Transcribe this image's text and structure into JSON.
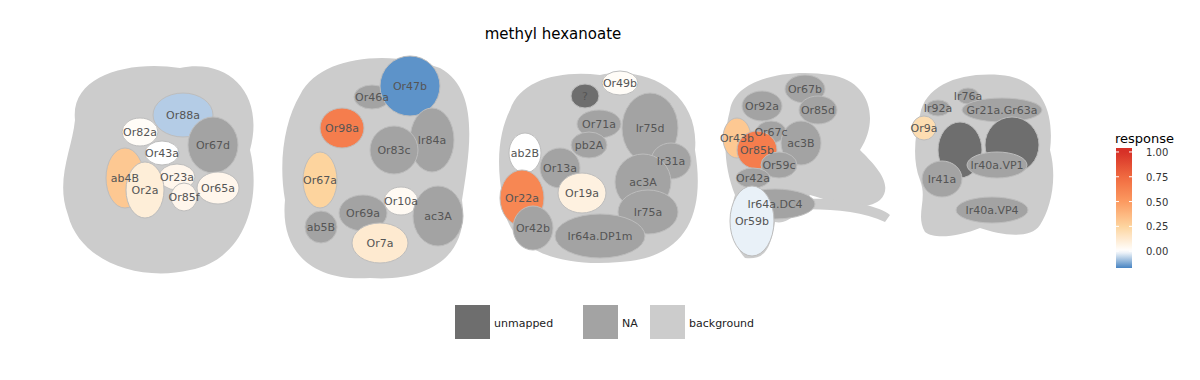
{
  "chart_data": {
    "type": "glomerulus_map",
    "title": "methyl hexanoate",
    "panels": [
      {
        "glomeruli": [
          {
            "label": "Or88a",
            "response": -0.07
          },
          {
            "label": "Or82a",
            "response": 0.02
          },
          {
            "label": "Or67d",
            "response": null,
            "status": "NA"
          },
          {
            "label": "Or43a",
            "response": 0.0
          },
          {
            "label": "ab4B",
            "response": 0.3
          },
          {
            "label": "Or23a",
            "response": 0.05
          },
          {
            "label": "Or2a",
            "response": 0.1
          },
          {
            "label": "Or85f",
            "response": 0.05
          },
          {
            "label": "Or65a",
            "response": 0.05
          }
        ]
      },
      {
        "glomeruli": [
          {
            "label": "Or46a",
            "response": null,
            "status": "NA"
          },
          {
            "label": "Or47b",
            "response": -0.15
          },
          {
            "label": "Or98a",
            "response": 0.65
          },
          {
            "label": "Ir84a",
            "response": null,
            "status": "NA"
          },
          {
            "label": "Or83c",
            "response": null,
            "status": "NA"
          },
          {
            "label": "Or67a",
            "response": 0.25
          },
          {
            "label": "Or10a",
            "response": 0.03
          },
          {
            "label": "Or69a",
            "response": null,
            "status": "NA"
          },
          {
            "label": "ac3A",
            "response": null,
            "status": "NA"
          },
          {
            "label": "ab5B",
            "response": null,
            "status": "NA"
          },
          {
            "label": "Or7a",
            "response": 0.12
          }
        ]
      },
      {
        "glomeruli": [
          {
            "label": "?",
            "response": null,
            "status": "unmapped"
          },
          {
            "label": "Or49b",
            "response": 0.02
          },
          {
            "label": "Or71a",
            "response": null,
            "status": "NA"
          },
          {
            "label": "Ir75d",
            "response": null,
            "status": "NA"
          },
          {
            "label": "ab2B",
            "response": 0.0
          },
          {
            "label": "pb2A",
            "response": null,
            "status": "NA"
          },
          {
            "label": "Or13a",
            "response": null,
            "status": "NA"
          },
          {
            "label": "Ir31a",
            "response": null,
            "status": "NA"
          },
          {
            "label": "ac3A",
            "response": null,
            "status": "NA"
          },
          {
            "label": "Or19a",
            "response": 0.08
          },
          {
            "label": "Or22a",
            "response": 0.6
          },
          {
            "label": "Or42b",
            "response": null,
            "status": "NA"
          },
          {
            "label": "Ir75a",
            "response": null,
            "status": "NA"
          },
          {
            "label": "Ir64a.DP1m",
            "response": null,
            "status": "NA"
          }
        ]
      },
      {
        "glomeruli": [
          {
            "label": "Or92a",
            "response": null,
            "status": "NA"
          },
          {
            "label": "Or67b",
            "response": null,
            "status": "NA"
          },
          {
            "label": "Or85d",
            "response": null,
            "status": "NA"
          },
          {
            "label": "Or43b",
            "response": 0.3
          },
          {
            "label": "Or67c",
            "response": null,
            "status": "NA"
          },
          {
            "label": "Or85b",
            "response": 0.65
          },
          {
            "label": "ac3B",
            "response": null,
            "status": "NA"
          },
          {
            "label": "Or59c",
            "response": null,
            "status": "NA"
          },
          {
            "label": "Or42a",
            "response": null,
            "status": "NA"
          },
          {
            "label": "Ir64a.DC4",
            "response": null,
            "status": "NA"
          },
          {
            "label": "Or59b",
            "response": -0.02
          }
        ]
      },
      {
        "glomeruli": [
          {
            "label": "Ir76a",
            "response": null,
            "status": "NA"
          },
          {
            "label": "Ir92a",
            "response": null,
            "status": "NA"
          },
          {
            "label": "Gr21a.Gr63a",
            "response": null,
            "status": "NA"
          },
          {
            "label": "Or9a",
            "response": 0.2
          },
          {
            "label": null,
            "response": null,
            "status": "unmapped"
          },
          {
            "label": null,
            "response": null,
            "status": "unmapped"
          },
          {
            "label": "Ir40a.VP1",
            "response": null,
            "status": "NA"
          },
          {
            "label": "Ir41a",
            "response": null,
            "status": "NA"
          },
          {
            "label": "Ir40a.VP4",
            "response": null,
            "status": "NA"
          }
        ]
      }
    ],
    "legend_items": [
      {
        "label": "unmapped",
        "color": "#6e6e6e"
      },
      {
        "label": "NA",
        "color": "#a3a3a3"
      },
      {
        "label": "background",
        "color": "#cccccc"
      }
    ],
    "colorbar": {
      "title": "response",
      "range": [
        -0.17,
        1.04
      ],
      "ticks": [
        {
          "value": 0,
          "label": "0.00"
        },
        {
          "value": 0.25,
          "label": "0.25"
        },
        {
          "value": 0.5,
          "label": "0.50"
        },
        {
          "value": 0.75,
          "label": "0.75"
        },
        {
          "value": 1,
          "label": "1.00"
        }
      ]
    }
  }
}
